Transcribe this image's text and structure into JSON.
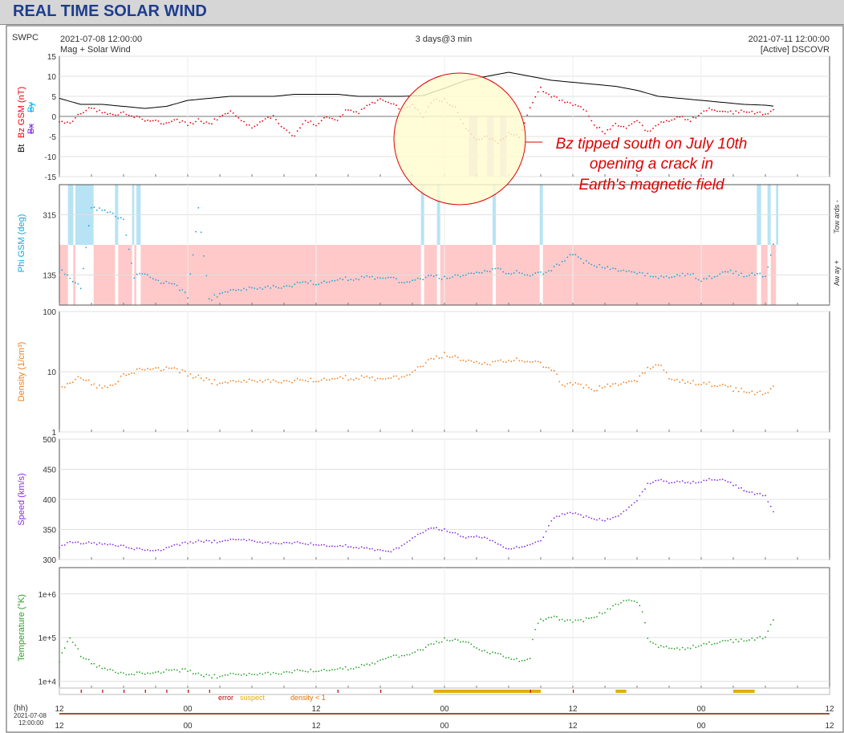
{
  "page": {
    "title": "REAL TIME SOLAR WIND"
  },
  "header": {
    "source": "SWPC",
    "start_time": "2021-07-08 12:00:00",
    "product": "Mag + Solar Wind",
    "span": "3 days@3 min",
    "end_time": "2021-07-11 12:00:00",
    "spacecraft": "[Active] DSCOVR"
  },
  "annotation": {
    "text": [
      "Bz tipped south on July 10th",
      "opening a crack in",
      "Earth's magnetic field"
    ],
    "color": "#e00000",
    "highlight_color": "#fffbd0"
  },
  "phi_side_labels": {
    "towards": "Tow ards -",
    "away": "Aw ay +"
  },
  "status_legend": {
    "error": "error",
    "suspect": "suspect",
    "density": "density < 1"
  },
  "bottom_axis": {
    "unit": "(hh)",
    "date": "2021-07-08",
    "time": "12:00:00"
  },
  "colors": {
    "bt": "#000000",
    "bz": "#e8000b",
    "by": "#00b7eb",
    "bx": "#7d2ad6",
    "phi": "#1aa3d6",
    "density": "#f07f1e",
    "speed": "#8a2be2",
    "temperature": "#2ca02c",
    "toward": "#b7e3f5",
    "away": "#ffc9c9",
    "bz_south": "#d9c8f2"
  },
  "chart_data": [
    {
      "type": "line",
      "panel": "magnetic field",
      "ylabel_parts": [
        "Bt",
        "Bz GSM (nT)",
        "Bx",
        "By"
      ],
      "ylim": [
        -15,
        15
      ],
      "yticks": [
        "15",
        "10",
        "5",
        "0",
        "-5",
        "-10",
        "-15"
      ],
      "x_ticks": [
        "12",
        "00",
        "12",
        "00",
        "12",
        "00",
        "12"
      ],
      "series": [
        {
          "name": "Bt",
          "x_hours": [
            0,
            2,
            4,
            6,
            8,
            10,
            12,
            14,
            16,
            18,
            20,
            22,
            24,
            26,
            28,
            30,
            32,
            34,
            36,
            37,
            38,
            40,
            42,
            44,
            46,
            48,
            50,
            52,
            54,
            56,
            58,
            60,
            62,
            64,
            66,
            66.9
          ],
          "values": [
            4.5,
            3,
            3,
            2.5,
            2,
            2.5,
            4,
            4.5,
            5,
            5,
            5,
            5.5,
            5.5,
            5.5,
            5,
            5,
            5,
            5.2,
            7,
            8,
            9,
            10,
            11,
            10,
            9,
            8.5,
            8,
            7.5,
            6.5,
            5,
            4.5,
            4,
            3.5,
            3,
            2.8,
            2.5
          ]
        },
        {
          "name": "Bz",
          "x_hours": [
            0,
            1,
            2,
            3,
            4,
            5,
            6,
            7,
            8,
            9,
            10,
            11,
            12,
            13,
            14,
            15,
            16,
            17,
            18,
            19,
            20,
            21,
            22,
            23,
            24,
            25,
            26,
            27,
            28,
            29,
            30,
            31,
            32,
            33,
            34,
            35,
            36,
            37,
            38,
            39,
            40,
            41,
            42,
            43,
            44,
            45,
            46,
            47,
            48,
            49,
            50,
            51,
            52,
            53,
            54,
            55,
            56,
            57,
            58,
            59,
            60,
            61,
            62,
            63,
            64,
            65,
            66,
            66.9
          ],
          "values": [
            -1,
            -2,
            1,
            2,
            1,
            0.5,
            1,
            0,
            -1,
            -1,
            -2,
            -1,
            -2,
            -1,
            -2,
            0,
            1,
            -1,
            -3,
            -1,
            0,
            -3,
            -5,
            -1,
            -2,
            0,
            -1,
            2,
            1,
            3,
            4,
            3,
            2,
            3,
            0,
            4,
            4,
            2,
            -3,
            -6,
            -5,
            -7,
            -4,
            -5,
            2,
            7,
            5,
            4,
            3,
            2,
            -2,
            -4,
            -2,
            -3,
            -1,
            -4,
            -2,
            -1,
            0,
            -1,
            1,
            2,
            1,
            1,
            1.5,
            1,
            0.5,
            1.5
          ]
        }
      ],
      "bz_south_intervals_hours": [
        [
          38.3,
          39.1
        ],
        [
          40.0,
          40.6
        ],
        [
          41.2,
          41.8
        ]
      ]
    },
    {
      "type": "scatter",
      "panel": "phi",
      "ylabel": "Phi GSM (deg)",
      "ylim": [
        45,
        405
      ],
      "yticks": [
        "315",
        "135"
      ],
      "series": [
        {
          "name": "Phi GSM",
          "x_hours": [
            0,
            1,
            2,
            3,
            4,
            5,
            6,
            7,
            8,
            9,
            10,
            11,
            12,
            13,
            14,
            15,
            16,
            17,
            18,
            19,
            20,
            21,
            22,
            23,
            24,
            25,
            26,
            27,
            28,
            29,
            30,
            31,
            32,
            33,
            34,
            35,
            36,
            37,
            38,
            39,
            40,
            41,
            42,
            43,
            44,
            45,
            46,
            47,
            48,
            49,
            50,
            51,
            52,
            53,
            54,
            55,
            56,
            57,
            58,
            59,
            60,
            61,
            62,
            63,
            64,
            65,
            66,
            66.9
          ],
          "values": [
            160,
            120,
            100,
            335,
            330,
            320,
            300,
            130,
            140,
            120,
            110,
            100,
            70,
            330,
            60,
            80,
            85,
            90,
            95,
            95,
            100,
            100,
            105,
            115,
            110,
            115,
            120,
            125,
            125,
            130,
            120,
            125,
            115,
            120,
            125,
            130,
            125,
            130,
            135,
            140,
            145,
            150,
            140,
            145,
            130,
            140,
            150,
            175,
            200,
            175,
            165,
            160,
            150,
            145,
            140,
            135,
            125,
            130,
            135,
            140,
            120,
            130,
            140,
            145,
            135,
            140,
            130,
            240
          ]
        }
      ],
      "toward_intervals_hours": [
        [
          0.8,
          1.3
        ],
        [
          1.5,
          3.2
        ],
        [
          5.2,
          5.5
        ],
        [
          6.8,
          7.0
        ],
        [
          7.2,
          7.6
        ],
        [
          33.8,
          34.1
        ],
        [
          35.3,
          35.6
        ],
        [
          40.5,
          40.8
        ],
        [
          44.9,
          45.2
        ],
        [
          65.2,
          65.6
        ],
        [
          66.2,
          66.5
        ],
        [
          67.0,
          67.2
        ]
      ],
      "away_interval_hours": [
        [
          0,
          67
        ]
      ]
    },
    {
      "type": "scatter",
      "panel": "density",
      "ylabel": "Density (1/cm³)",
      "scale": "log",
      "ylim": [
        1,
        100
      ],
      "yticks": [
        "100",
        "10",
        "1"
      ],
      "series": [
        {
          "name": "Density",
          "x_hours": [
            0,
            1,
            2,
            3,
            4,
            5,
            6,
            7,
            8,
            9,
            10,
            11,
            12,
            13,
            14,
            15,
            16,
            17,
            18,
            19,
            20,
            21,
            22,
            23,
            24,
            25,
            26,
            27,
            28,
            29,
            30,
            31,
            32,
            33,
            34,
            35,
            36,
            37,
            38,
            39,
            40,
            41,
            42,
            43,
            44,
            45,
            46,
            47,
            48,
            49,
            50,
            51,
            52,
            53,
            54,
            55,
            56,
            57,
            58,
            59,
            60,
            61,
            62,
            63,
            64,
            65,
            66,
            66.9
          ],
          "values": [
            5.5,
            6,
            8.5,
            6,
            5.5,
            6,
            9,
            10,
            11,
            11.5,
            11,
            10.5,
            9,
            8,
            7,
            6.5,
            6.5,
            6.8,
            7,
            7,
            7,
            7,
            7,
            7.2,
            7.3,
            7.5,
            7.8,
            8,
            8,
            8,
            7,
            7.5,
            8.5,
            10,
            13,
            16,
            19,
            17,
            15,
            14,
            13,
            14,
            15.5,
            16,
            14,
            13.5,
            11,
            6,
            6.5,
            5.8,
            5,
            6,
            6,
            6.5,
            7,
            11,
            13,
            8,
            7,
            6.8,
            6.5,
            6.2,
            5.8,
            5.2,
            5,
            4.5,
            4.3,
            5.5
          ]
        }
      ]
    },
    {
      "type": "scatter",
      "panel": "speed",
      "ylabel": "Speed (km/s)",
      "ylim": [
        300,
        500
      ],
      "yticks": [
        "500",
        "450",
        "400",
        "350",
        "300"
      ],
      "series": [
        {
          "name": "Speed",
          "x_hours": [
            0,
            1,
            2,
            3,
            4,
            5,
            6,
            7,
            8,
            9,
            10,
            11,
            12,
            13,
            14,
            15,
            16,
            17,
            18,
            19,
            20,
            21,
            22,
            23,
            24,
            25,
            26,
            27,
            28,
            29,
            30,
            31,
            32,
            33,
            34,
            35,
            36,
            37,
            38,
            39,
            40,
            41,
            42,
            43,
            44,
            45,
            46,
            47,
            48,
            49,
            50,
            51,
            52,
            53,
            54,
            55,
            56,
            57,
            58,
            59,
            60,
            61,
            62,
            63,
            64,
            65,
            66,
            66.9
          ],
          "values": [
            322,
            328,
            328,
            327,
            326,
            325,
            323,
            318,
            316,
            315,
            318,
            324,
            328,
            330,
            330,
            330,
            332,
            333,
            331,
            328,
            327,
            328,
            328,
            326,
            326,
            323,
            322,
            323,
            320,
            318,
            314,
            312,
            324,
            336,
            346,
            352,
            349,
            343,
            336,
            338,
            335,
            324,
            318,
            321,
            324,
            330,
            365,
            376,
            378,
            372,
            368,
            366,
            370,
            382,
            398,
            425,
            432,
            428,
            430,
            428,
            430,
            434,
            432,
            425,
            416,
            410,
            406,
            372
          ]
        }
      ]
    },
    {
      "type": "scatter",
      "panel": "temperature",
      "ylabel": "Temperature (°K)",
      "scale": "log",
      "ylim": [
        7000,
        4000000
      ],
      "yticks": [
        "1e+6",
        "1e+5",
        "1e+4"
      ],
      "series": [
        {
          "name": "Temperature",
          "x_hours": [
            0,
            1,
            2,
            3,
            4,
            5,
            6,
            7,
            8,
            9,
            10,
            11,
            12,
            13,
            14,
            15,
            16,
            17,
            18,
            19,
            20,
            21,
            22,
            23,
            24,
            25,
            26,
            27,
            28,
            29,
            30,
            31,
            32,
            33,
            34,
            35,
            36,
            37,
            38,
            39,
            40,
            41,
            42,
            43,
            44,
            45,
            46,
            47,
            48,
            49,
            50,
            51,
            52,
            53,
            54,
            55,
            56,
            57,
            58,
            59,
            60,
            61,
            62,
            63,
            64,
            65,
            66,
            66.9
          ],
          "values": [
            30000,
            90000,
            40000,
            25000,
            20000,
            18000,
            15000,
            15000,
            15000,
            16000,
            17000,
            17000,
            18000,
            14000,
            13000,
            13000,
            14000,
            14000,
            14000,
            15000,
            15000,
            16000,
            17000,
            17000,
            18000,
            18000,
            19000,
            20000,
            22000,
            24000,
            28000,
            35000,
            40000,
            45000,
            55000,
            70000,
            90000,
            85000,
            80000,
            55000,
            45000,
            40000,
            35000,
            30000,
            32000,
            250000,
            300000,
            260000,
            240000,
            250000,
            300000,
            400000,
            550000,
            700000,
            650000,
            90000,
            60000,
            60000,
            55000,
            60000,
            70000,
            75000,
            80000,
            85000,
            90000,
            95000,
            100000,
            260000
          ]
        }
      ]
    }
  ]
}
